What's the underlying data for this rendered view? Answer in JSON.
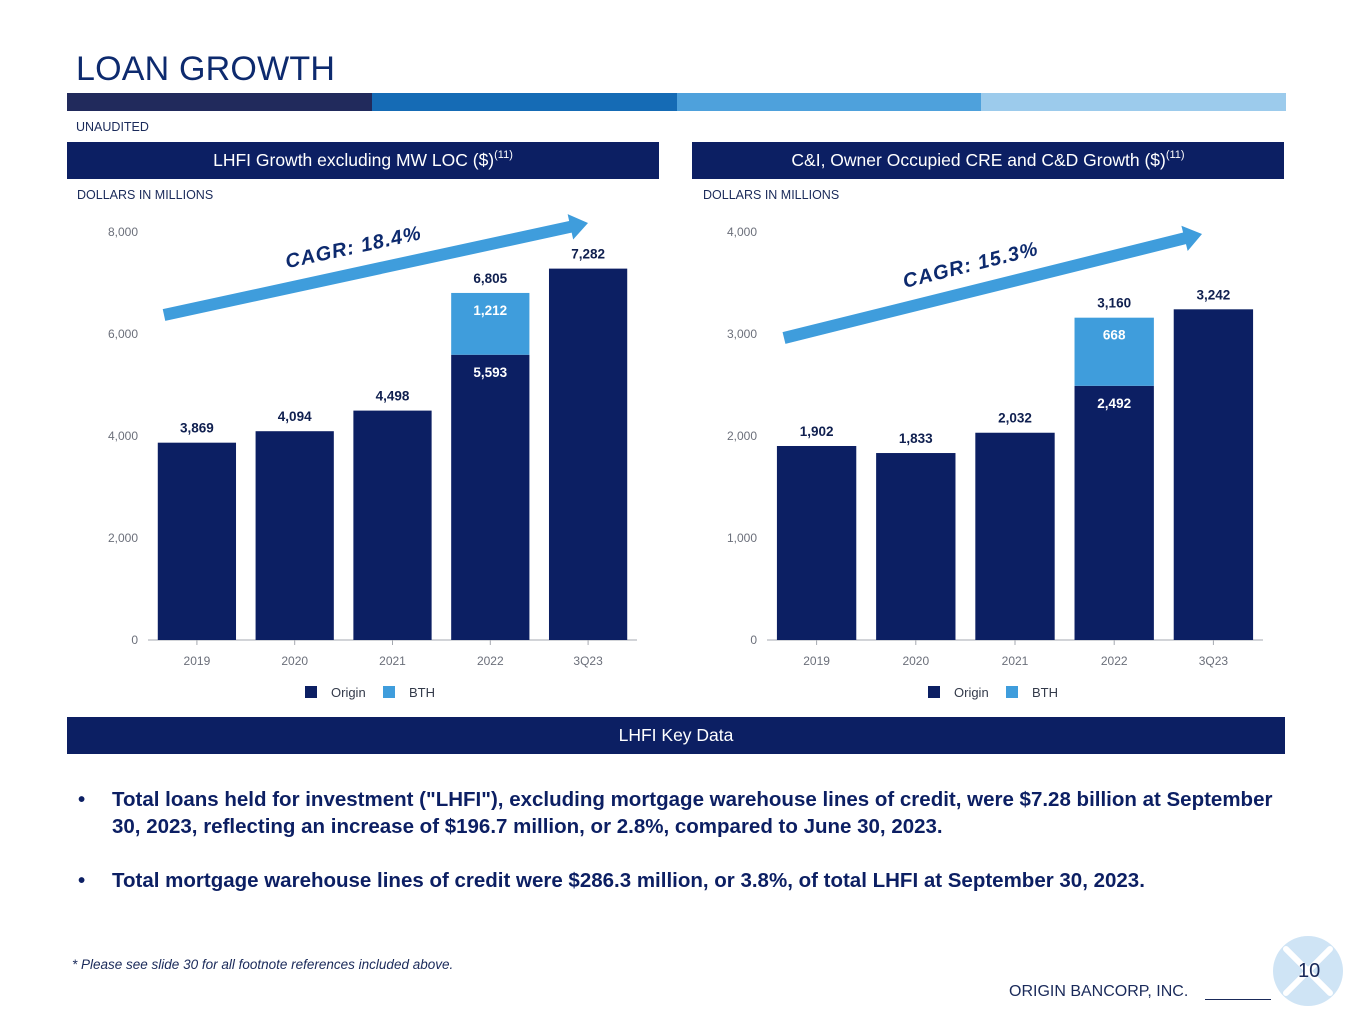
{
  "page": {
    "title": "LOAN GROWTH",
    "subtitle": "UNAUDITED",
    "title_bar_colors": [
      "#212a5c",
      "#156bb5",
      "#4ea1dc",
      "#9ccbec"
    ],
    "footnote": "* Please see slide 30 for all footnote references included above.",
    "company": "ORIGIN BANCORP, INC.",
    "page_number": "10"
  },
  "colors": {
    "origin": "#0c1f63",
    "bth": "#3f9ddc",
    "header_bg": "#0c1f63",
    "arrow": "#3f9ddc"
  },
  "key_data": {
    "header": "LHFI Key Data",
    "bullets": [
      "Total loans held for investment (\"LHFI\"), excluding mortgage warehouse lines of credit, were $7.28 billion at September 30, 2023, reflecting an increase of $196.7 million, or 2.8%, compared to June 30, 2023.",
      "Total mortgage warehouse lines of credit were $286.3 million, or 3.8%, of total LHFI at September 30, 2023."
    ],
    "bullet_symbol": "•"
  },
  "chart_data": [
    {
      "type": "bar",
      "stacked": true,
      "title": "LHFI Growth excluding MW LOC ($)",
      "title_superscript": "(11)",
      "units_label": "DOLLARS IN MILLIONS",
      "annotation": "CAGR:  18.4%",
      "categories": [
        "2019",
        "2020",
        "2021",
        "2022",
        "3Q23"
      ],
      "series": [
        {
          "name": "Origin",
          "values": [
            3869,
            4094,
            4498,
            5593,
            7282
          ]
        },
        {
          "name": "BTH",
          "values": [
            0,
            0,
            0,
            1212,
            0
          ]
        }
      ],
      "totals": [
        3869,
        4094,
        4498,
        6805,
        7282
      ],
      "ylim": [
        0,
        8000
      ],
      "yticks": [
        0,
        2000,
        4000,
        6000,
        8000
      ],
      "ytick_labels": [
        "0",
        "2,000",
        "4,000",
        "6,000",
        "8,000"
      ],
      "total_labels": [
        "3,869",
        "4,094",
        "4,498",
        "6,805",
        "7,282"
      ],
      "segment_labels": {
        "origin": [
          "",
          "",
          "",
          "5,593",
          ""
        ],
        "bth": [
          "",
          "",
          "",
          "1,212",
          ""
        ]
      },
      "legend": [
        "Origin",
        "BTH"
      ],
      "legend_position": "bottom",
      "grid": false
    },
    {
      "type": "bar",
      "stacked": true,
      "title": "C&I, Owner Occupied CRE and C&D Growth ($)",
      "title_superscript": "(11)",
      "units_label": "DOLLARS IN MILLIONS",
      "annotation": "CAGR:  15.3%",
      "categories": [
        "2019",
        "2020",
        "2021",
        "2022",
        "3Q23"
      ],
      "series": [
        {
          "name": "Origin",
          "values": [
            1902,
            1833,
            2032,
            2492,
            3242
          ]
        },
        {
          "name": "BTH",
          "values": [
            0,
            0,
            0,
            668,
            0
          ]
        }
      ],
      "totals": [
        1902,
        1833,
        2032,
        3160,
        3242
      ],
      "ylim": [
        0,
        4000
      ],
      "yticks": [
        0,
        1000,
        2000,
        3000,
        4000
      ],
      "ytick_labels": [
        "0",
        "1,000",
        "2,000",
        "3,000",
        "4,000"
      ],
      "total_labels": [
        "1,902",
        "1,833",
        "2,032",
        "3,160",
        "3,242"
      ],
      "segment_labels": {
        "origin": [
          "",
          "",
          "",
          "2,492",
          ""
        ],
        "bth": [
          "",
          "",
          "",
          "668",
          ""
        ]
      },
      "legend": [
        "Origin",
        "BTH"
      ],
      "legend_position": "bottom",
      "grid": false
    }
  ]
}
